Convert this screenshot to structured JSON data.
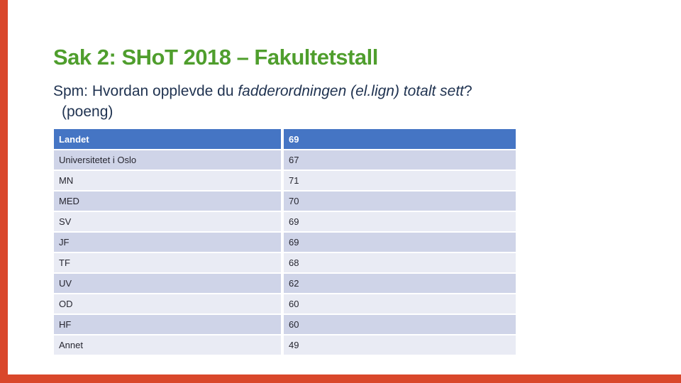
{
  "slide": {
    "title": "Sak 2: SHoT 2018 – Fakultetstall",
    "subtitle": {
      "prefix": "Spm: Hvordan opplevde du ",
      "italic": "fadderordningen (el.lign) totalt sett",
      "suffix": "?",
      "line2": "(poeng)"
    },
    "colors": {
      "border_red": "#d9472b",
      "title_green": "#4f9e2d",
      "subtitle_navy": "#1f3250",
      "header_blue": "#4575c4",
      "header_text": "#ffffff",
      "row_dark": "#cfd4e8",
      "row_light": "#e9ebf4",
      "body_text": "#262630"
    },
    "table": {
      "header": {
        "label": "Landet",
        "value": "69"
      },
      "rows": [
        {
          "label": "Universitetet i Oslo",
          "value": "67"
        },
        {
          "label": "MN",
          "value": "71"
        },
        {
          "label": "MED",
          "value": "70"
        },
        {
          "label": "SV",
          "value": "69"
        },
        {
          "label": "JF",
          "value": "69"
        },
        {
          "label": "TF",
          "value": "68"
        },
        {
          "label": "UV",
          "value": "62"
        },
        {
          "label": "OD",
          "value": "60"
        },
        {
          "label": "HF",
          "value": "60"
        },
        {
          "label": "Annet",
          "value": "49"
        }
      ]
    }
  },
  "chart_data": {
    "type": "table",
    "title": "Sak 2: SHoT 2018 – Fakultetstall",
    "question": "Spm: Hvordan opplevde du fadderordningen (el.lign) totalt sett? (poeng)",
    "categories": [
      "Landet",
      "Universitetet i Oslo",
      "MN",
      "MED",
      "SV",
      "JF",
      "TF",
      "UV",
      "OD",
      "HF",
      "Annet"
    ],
    "values": [
      69,
      67,
      71,
      70,
      69,
      69,
      68,
      62,
      60,
      60,
      49
    ]
  }
}
